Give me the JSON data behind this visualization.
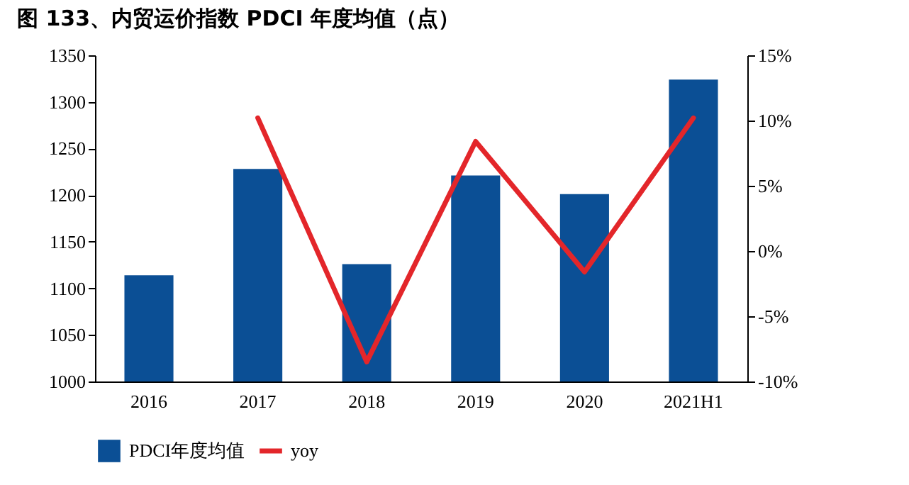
{
  "chart_data": {
    "type": "bar",
    "title": "图 133、内贸运价指数 PDCI 年度均值（点）",
    "categories": [
      "2016",
      "2017",
      "2018",
      "2019",
      "2020",
      "2021H1"
    ],
    "series": [
      {
        "name": "PDCI年度均值",
        "color": "#0b4f95",
        "values": [
          1114,
          1228,
          1126,
          1221,
          1201,
          1324
        ]
      },
      {
        "name": "yoy",
        "type": "line",
        "axis": "y2",
        "color": "#e3262a",
        "values": [
          null,
          10.2,
          -8.5,
          8.4,
          -1.6,
          10.2
        ]
      }
    ],
    "ylim": [
      1000,
      1350
    ],
    "yticks": [
      1000,
      1050,
      1100,
      1150,
      1200,
      1250,
      1300,
      1350
    ],
    "y2lim": [
      -10,
      15
    ],
    "y2ticks": [
      {
        "value": -10,
        "label": "-10%"
      },
      {
        "value": -5,
        "label": "-5%"
      },
      {
        "value": 0,
        "label": "0%"
      },
      {
        "value": 5,
        "label": "5%"
      },
      {
        "value": 10,
        "label": "10%"
      },
      {
        "value": 15,
        "label": "15%"
      }
    ],
    "legend": "bottom",
    "grid": false
  }
}
